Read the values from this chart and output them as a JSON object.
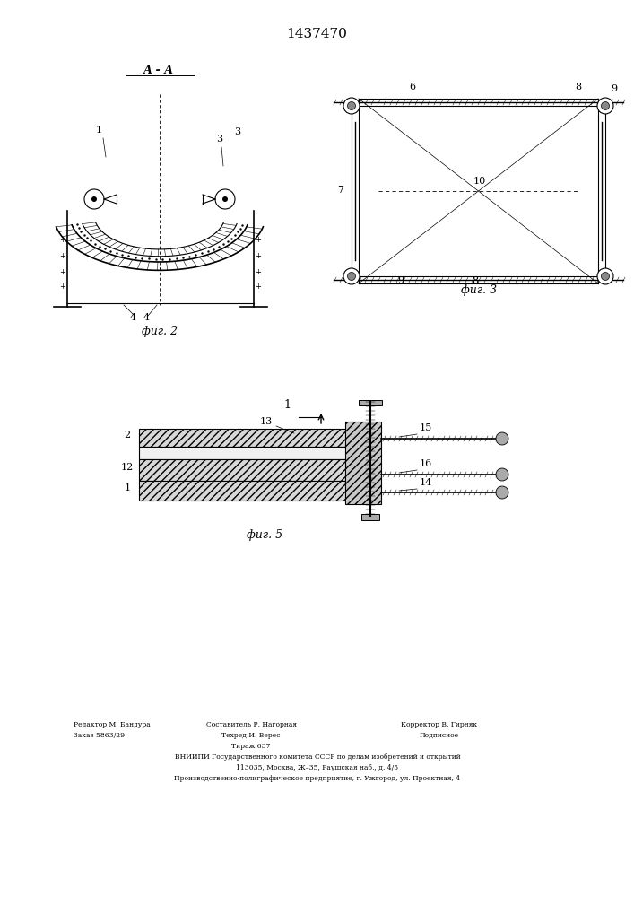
{
  "title": "1437470",
  "title_fontsize": 11,
  "bg_color": "#ffffff",
  "fig2_label": "фиг. 2",
  "fig3_label": "фиг. 3",
  "fig5_label": "фиг. 5",
  "section_label": "А - А",
  "footer_lines": [
    "ВНИИПИ Государственного комитета СССР по делам изобретений и открытий",
    "113035, Москва, Ж–35, Раушская наб., д. 4/5",
    "Производственно-полиграфическое предприятие, г. Ужгород, ул. Проектная, 4"
  ]
}
